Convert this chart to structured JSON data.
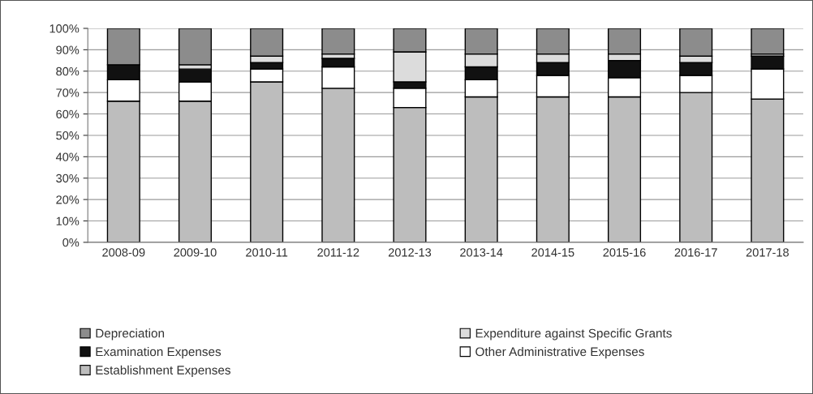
{
  "chart_data": {
    "type": "bar",
    "stacked": true,
    "categories": [
      "2008-09",
      "2009-10",
      "2010-11",
      "2011-12",
      "2012-13",
      "2013-14",
      "2014-15",
      "2015-16",
      "2016-17",
      "2017-18"
    ],
    "series": [
      {
        "name": "Establishment Expenses",
        "color": "#bdbdbd",
        "values": [
          66,
          66,
          75,
          72,
          63,
          68,
          68,
          68,
          70,
          67
        ]
      },
      {
        "name": "Other Administrative Expenses",
        "color": "#ffffff",
        "values": [
          10,
          9,
          6,
          10,
          9,
          8,
          10,
          9,
          8,
          14
        ]
      },
      {
        "name": "Examination Expenses",
        "color": "#111111",
        "values": [
          7,
          6,
          3,
          4,
          3,
          6,
          6,
          8,
          6,
          6
        ]
      },
      {
        "name": "Expenditure against Specific Grants",
        "color": "#dcdcdc",
        "values": [
          null,
          2,
          3,
          2,
          14,
          6,
          4,
          3,
          3,
          1
        ]
      },
      {
        "name": "Depreciation",
        "color": "#8c8c8c",
        "values": [
          17,
          17,
          13,
          12,
          11,
          12,
          12,
          12,
          13,
          12
        ]
      }
    ],
    "ylim": [
      0,
      100
    ],
    "yticks": [
      {
        "value": 0,
        "label": "0%"
      },
      {
        "value": 10,
        "label": "10%"
      },
      {
        "value": 20,
        "label": "20%"
      },
      {
        "value": 30,
        "label": "30%"
      },
      {
        "value": 40,
        "label": "40%"
      },
      {
        "value": 50,
        "label": "50%"
      },
      {
        "value": 60,
        "label": "60%"
      },
      {
        "value": 70,
        "label": "70%"
      },
      {
        "value": 80,
        "label": "80%"
      },
      {
        "value": 90,
        "label": "90%"
      },
      {
        "value": 100,
        "label": "100%"
      }
    ],
    "grid": "y",
    "legend": "bottom"
  }
}
